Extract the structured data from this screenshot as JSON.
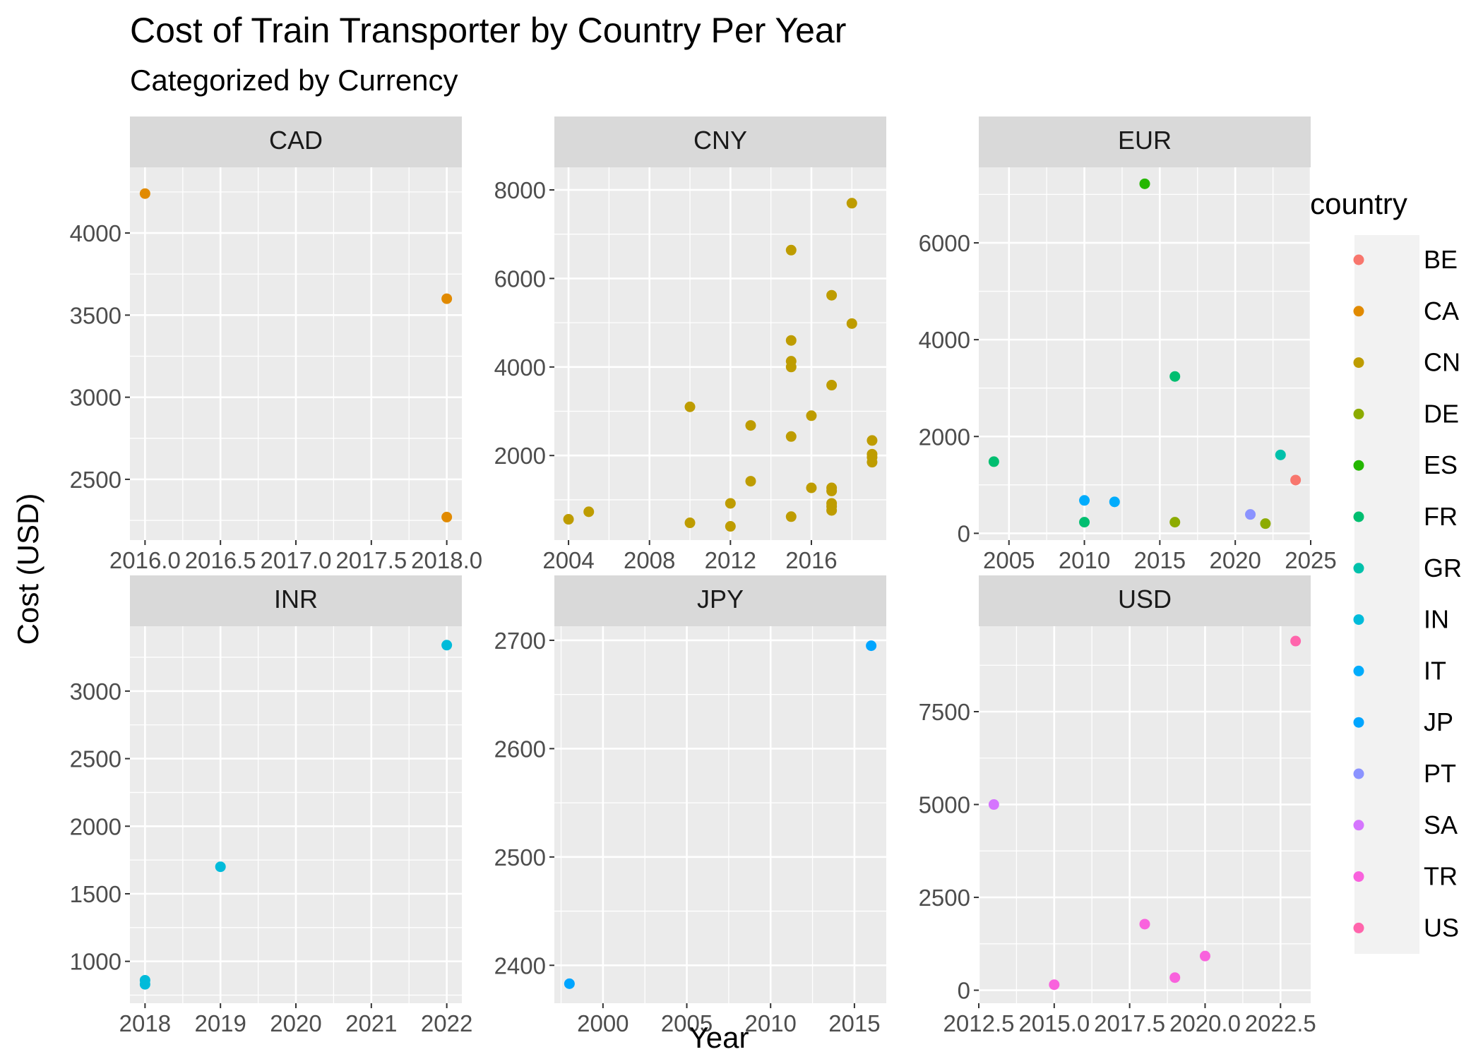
{
  "chart_data": {
    "type": "scatter",
    "title": "Cost of Train Transporter by Country Per Year",
    "subtitle": "Categorized by Currency",
    "xlabel": "Year",
    "ylabel": "Cost (USD)",
    "legend": {
      "title": "country",
      "placement": "right",
      "entries": [
        "BE",
        "CA",
        "CN",
        "DE",
        "ES",
        "FR",
        "GR",
        "IN",
        "IT",
        "JP",
        "PT",
        "SA",
        "TR",
        "US"
      ],
      "colors": {
        "BE": "#F8766D",
        "CA": "#E18A00",
        "CN": "#BE9C00",
        "DE": "#8CAB00",
        "ES": "#24B700",
        "FR": "#00BE70",
        "GR": "#00C1AB",
        "IN": "#00BBDA",
        "IT": "#00ACFC",
        "JP": "#00A5FF",
        "PT": "#8B93FF",
        "SA": "#D575FE",
        "TR": "#F962DD",
        "US": "#FF65AC"
      }
    },
    "grid": true,
    "panels": [
      {
        "name": "CAD",
        "xlim": [
          2015.9,
          2018.1
        ],
        "ylim": [
          2130,
          4400
        ],
        "xticks": [
          2016.0,
          2016.5,
          2017.0,
          2017.5,
          2018.0
        ],
        "xtick_labels": [
          "2016.0",
          "2016.5",
          "2017.0",
          "2017.5",
          "2018.0"
        ],
        "yticks": [
          2500,
          3000,
          3500,
          4000
        ],
        "ytick_labels": [
          "2500",
          "3000",
          "3500",
          "4000"
        ],
        "points": [
          {
            "x": 2016,
            "y": 4240,
            "country": "CA"
          },
          {
            "x": 2018,
            "y": 3600,
            "country": "CA"
          },
          {
            "x": 2018,
            "y": 2270,
            "country": "CA"
          }
        ]
      },
      {
        "name": "CNY",
        "xlim": [
          2003.3,
          2019.7
        ],
        "ylim": [
          90,
          8510
        ],
        "xticks": [
          2004,
          2008,
          2012,
          2016
        ],
        "xtick_labels": [
          "2004",
          "2008",
          "2012",
          "2016"
        ],
        "yticks": [
          2000,
          4000,
          6000,
          8000
        ],
        "ytick_labels": [
          "2000",
          "4000",
          "6000",
          "8000"
        ],
        "points": [
          {
            "x": 2004,
            "y": 560,
            "country": "CN"
          },
          {
            "x": 2005,
            "y": 730,
            "country": "CN"
          },
          {
            "x": 2010,
            "y": 3100,
            "country": "CN"
          },
          {
            "x": 2010,
            "y": 480,
            "country": "CN"
          },
          {
            "x": 2012,
            "y": 920,
            "country": "CN"
          },
          {
            "x": 2012,
            "y": 400,
            "country": "CN"
          },
          {
            "x": 2013,
            "y": 2680,
            "country": "CN"
          },
          {
            "x": 2013,
            "y": 1420,
            "country": "CN"
          },
          {
            "x": 2015,
            "y": 6640,
            "country": "CN"
          },
          {
            "x": 2015,
            "y": 4600,
            "country": "CN"
          },
          {
            "x": 2015,
            "y": 4130,
            "country": "CN"
          },
          {
            "x": 2015,
            "y": 4000,
            "country": "CN"
          },
          {
            "x": 2015,
            "y": 2430,
            "country": "CN"
          },
          {
            "x": 2015,
            "y": 620,
            "country": "CN"
          },
          {
            "x": 2016,
            "y": 2900,
            "country": "CN"
          },
          {
            "x": 2016,
            "y": 1270,
            "country": "CN"
          },
          {
            "x": 2017,
            "y": 5620,
            "country": "CN"
          },
          {
            "x": 2017,
            "y": 3590,
            "country": "CN"
          },
          {
            "x": 2017,
            "y": 1270,
            "country": "CN"
          },
          {
            "x": 2017,
            "y": 1200,
            "country": "CN"
          },
          {
            "x": 2017,
            "y": 920,
            "country": "CN"
          },
          {
            "x": 2017,
            "y": 850,
            "country": "CN"
          },
          {
            "x": 2017,
            "y": 760,
            "country": "CN"
          },
          {
            "x": 2018,
            "y": 7700,
            "country": "CN"
          },
          {
            "x": 2018,
            "y": 4980,
            "country": "CN"
          },
          {
            "x": 2019,
            "y": 2340,
            "country": "CN"
          },
          {
            "x": 2019,
            "y": 2030,
            "country": "CN"
          },
          {
            "x": 2019,
            "y": 1960,
            "country": "CN"
          },
          {
            "x": 2019,
            "y": 1850,
            "country": "CN"
          }
        ]
      },
      {
        "name": "EUR",
        "xlim": [
          2003,
          2025
        ],
        "ylim": [
          -140,
          7560
        ],
        "xticks": [
          2005,
          2010,
          2015,
          2020,
          2025
        ],
        "xtick_labels": [
          "2005",
          "2010",
          "2015",
          "2020",
          "2025"
        ],
        "yticks": [
          0,
          2000,
          4000,
          6000
        ],
        "ytick_labels": [
          "0",
          "2000",
          "4000",
          "6000"
        ],
        "points": [
          {
            "x": 2004,
            "y": 1480,
            "country": "FR"
          },
          {
            "x": 2010,
            "y": 680,
            "country": "IT"
          },
          {
            "x": 2010,
            "y": 230,
            "country": "FR"
          },
          {
            "x": 2012,
            "y": 650,
            "country": "IT"
          },
          {
            "x": 2014,
            "y": 7220,
            "country": "ES"
          },
          {
            "x": 2016,
            "y": 3240,
            "country": "FR"
          },
          {
            "x": 2016,
            "y": 230,
            "country": "DE"
          },
          {
            "x": 2021,
            "y": 390,
            "country": "PT"
          },
          {
            "x": 2022,
            "y": 200,
            "country": "DE"
          },
          {
            "x": 2023,
            "y": 1620,
            "country": "GR"
          },
          {
            "x": 2024,
            "y": 1100,
            "country": "BE"
          }
        ]
      },
      {
        "name": "INR",
        "xlim": [
          2017.8,
          2022.2
        ],
        "ylim": [
          690,
          3480
        ],
        "xticks": [
          2018,
          2019,
          2020,
          2021,
          2022
        ],
        "xtick_labels": [
          "2018",
          "2019",
          "2020",
          "2021",
          "2022"
        ],
        "yticks": [
          1000,
          1500,
          2000,
          2500,
          3000
        ],
        "ytick_labels": [
          "1000",
          "1500",
          "2000",
          "2500",
          "3000"
        ],
        "points": [
          {
            "x": 2018,
            "y": 860,
            "country": "IN"
          },
          {
            "x": 2018,
            "y": 830,
            "country": "IN"
          },
          {
            "x": 2019,
            "y": 1700,
            "country": "IN"
          },
          {
            "x": 2022,
            "y": 3340,
            "country": "IN"
          }
        ]
      },
      {
        "name": "JPY",
        "xlim": [
          1997.1,
          2016.9
        ],
        "ylim": [
          2365,
          2713
        ],
        "xticks": [
          2000,
          2005,
          2010,
          2015
        ],
        "xtick_labels": [
          "2000",
          "2005",
          "2010",
          "2015"
        ],
        "yticks": [
          2400,
          2500,
          2600,
          2700
        ],
        "ytick_labels": [
          "2400",
          "2500",
          "2600",
          "2700"
        ],
        "points": [
          {
            "x": 1998,
            "y": 2383,
            "country": "JP"
          },
          {
            "x": 2016,
            "y": 2695,
            "country": "JP"
          }
        ]
      },
      {
        "name": "USD",
        "xlim": [
          2012.5,
          2023.5
        ],
        "ylim": [
          -350,
          9800
        ],
        "xticks": [
          2012.5,
          2015.0,
          2017.5,
          2020.0,
          2022.5
        ],
        "xtick_labels": [
          "2012.5",
          "2015.0",
          "2017.5",
          "2020.0",
          "2022.5"
        ],
        "yticks": [
          0,
          2500,
          5000,
          7500
        ],
        "ytick_labels": [
          "0",
          "2500",
          "5000",
          "7500"
        ],
        "points": [
          {
            "x": 2013,
            "y": 5000,
            "country": "SA"
          },
          {
            "x": 2015,
            "y": 150,
            "country": "TR"
          },
          {
            "x": 2018,
            "y": 1780,
            "country": "TR"
          },
          {
            "x": 2019,
            "y": 340,
            "country": "TR"
          },
          {
            "x": 2020,
            "y": 920,
            "country": "TR"
          },
          {
            "x": 2023,
            "y": 9400,
            "country": "US"
          }
        ]
      }
    ]
  }
}
